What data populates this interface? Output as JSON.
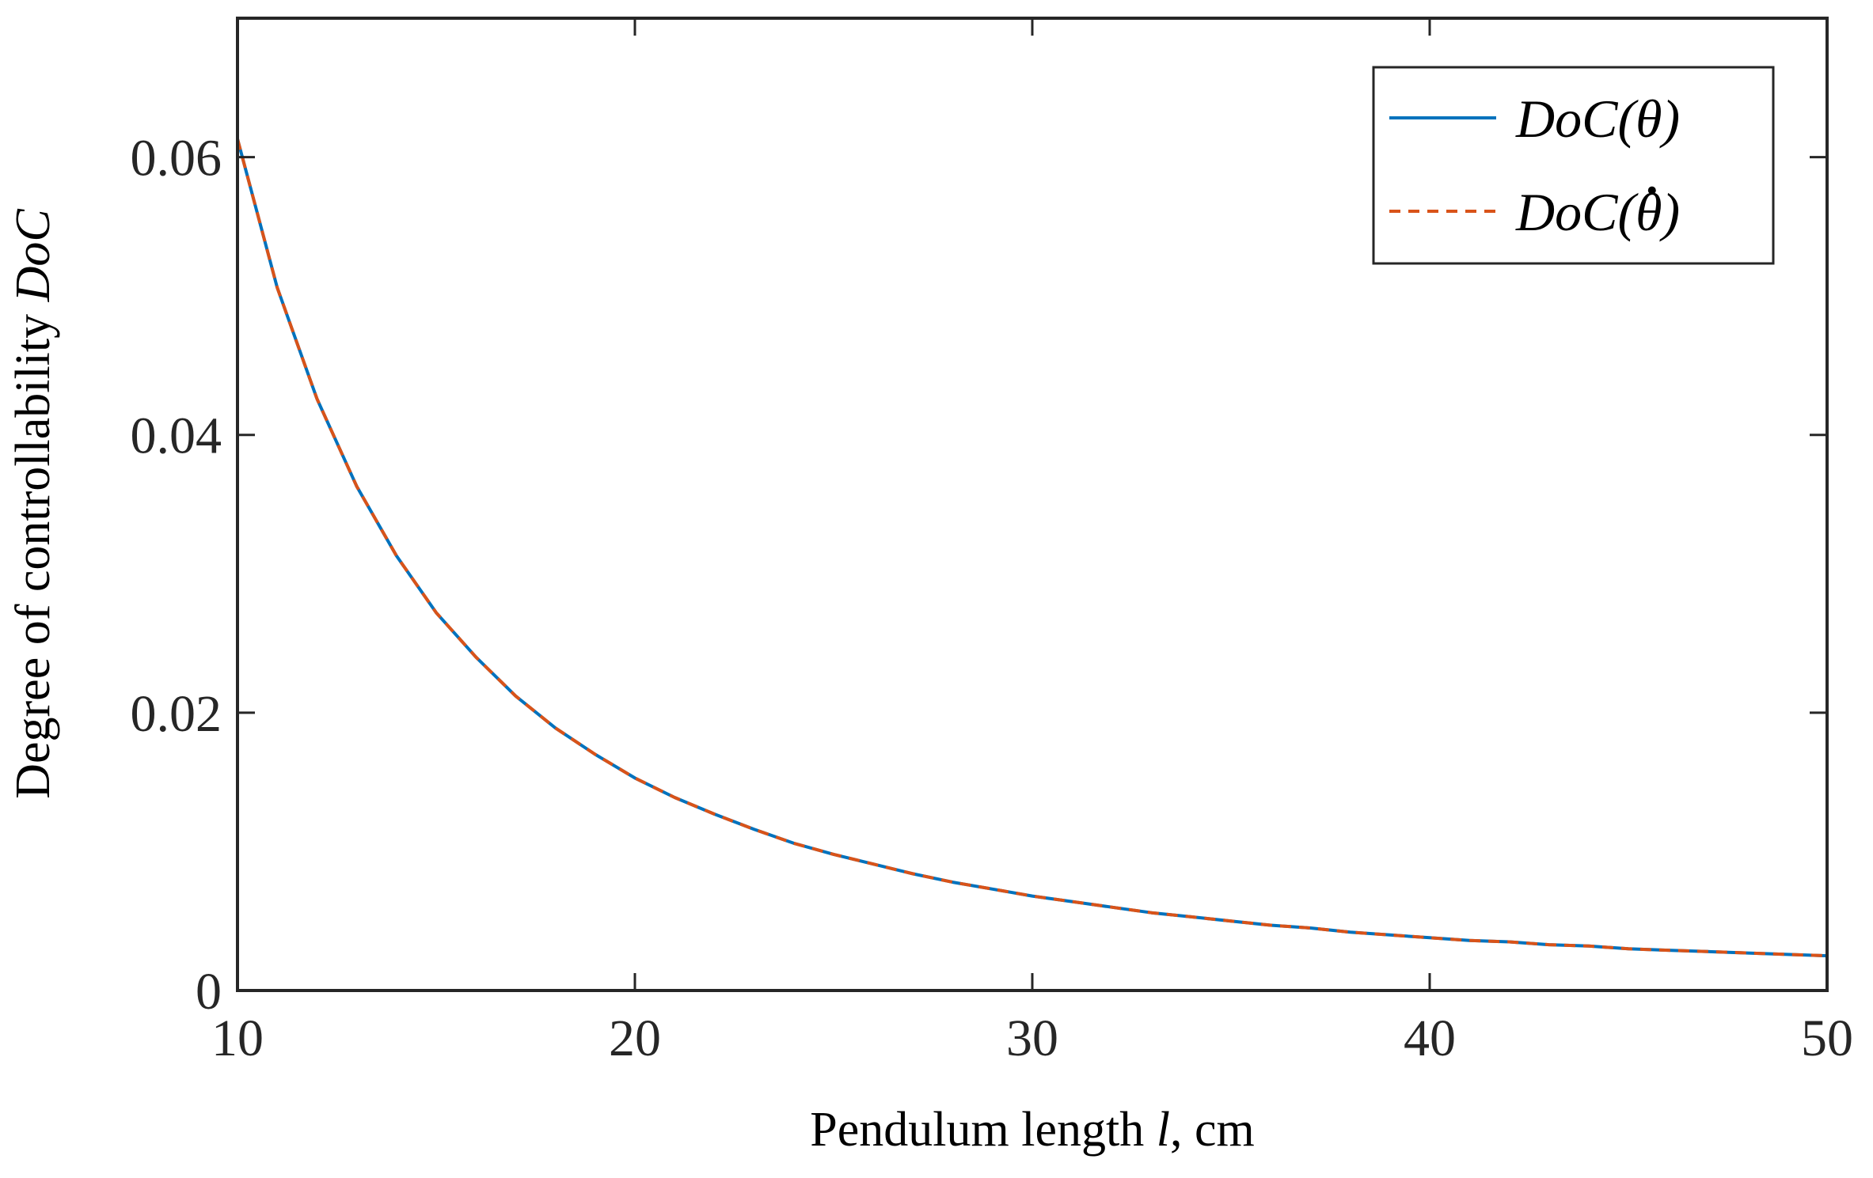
{
  "chart_data": {
    "type": "line",
    "xlabel_parts": {
      "prefix": "Pendulum length ",
      "var": "l",
      "suffix": ", cm"
    },
    "ylabel_parts": {
      "prefix": "Degree of controllability  ",
      "var": "DoC"
    },
    "xlim": [
      10,
      50
    ],
    "ylim": [
      0,
      0.07
    ],
    "xticks": [
      10,
      20,
      30,
      40,
      50
    ],
    "xtick_labels": [
      "10",
      "20",
      "30",
      "40",
      "50"
    ],
    "yticks": [
      0,
      0.02,
      0.04,
      0.06
    ],
    "ytick_labels": [
      "0",
      "0.02",
      "0.04",
      "0.06"
    ],
    "grid": false,
    "legend_position": "top-right",
    "x": [
      10,
      11,
      12,
      13,
      14,
      15,
      16,
      17,
      18,
      19,
      20,
      21,
      22,
      23,
      24,
      25,
      26,
      27,
      28,
      29,
      30,
      31,
      32,
      33,
      34,
      35,
      36,
      37,
      38,
      39,
      40,
      41,
      42,
      43,
      44,
      45,
      46,
      47,
      48,
      49,
      50
    ],
    "series": [
      {
        "name": "DoC(θ)",
        "legend_base": "DoC(θ)",
        "legend_dot": false,
        "color": "#0072BD",
        "style": "solid",
        "values": [
          0.0613,
          0.0506,
          0.0426,
          0.0363,
          0.0313,
          0.0272,
          0.024,
          0.0212,
          0.0189,
          0.017,
          0.0153,
          0.0139,
          0.0127,
          0.0116,
          0.0106,
          0.0098,
          0.0091,
          0.0084,
          0.0078,
          0.0073,
          0.0068,
          0.0064,
          0.006,
          0.0056,
          0.0053,
          0.005,
          0.0047,
          0.0045,
          0.0042,
          0.004,
          0.0038,
          0.0036,
          0.0035,
          0.0033,
          0.0032,
          0.003,
          0.0029,
          0.0028,
          0.0027,
          0.0026,
          0.0025
        ]
      },
      {
        "name": "DoC(θ̇)",
        "legend_base": "DoC(θ)",
        "legend_dot": true,
        "color": "#D95319",
        "style": "dashed",
        "values": [
          0.0613,
          0.0506,
          0.0426,
          0.0363,
          0.0313,
          0.0272,
          0.024,
          0.0212,
          0.0189,
          0.017,
          0.0153,
          0.0139,
          0.0127,
          0.0116,
          0.0106,
          0.0098,
          0.0091,
          0.0084,
          0.0078,
          0.0073,
          0.0068,
          0.0064,
          0.006,
          0.0056,
          0.0053,
          0.005,
          0.0047,
          0.0045,
          0.0042,
          0.004,
          0.0038,
          0.0036,
          0.0035,
          0.0033,
          0.0032,
          0.003,
          0.0029,
          0.0028,
          0.0027,
          0.0026,
          0.0025
        ]
      }
    ]
  }
}
